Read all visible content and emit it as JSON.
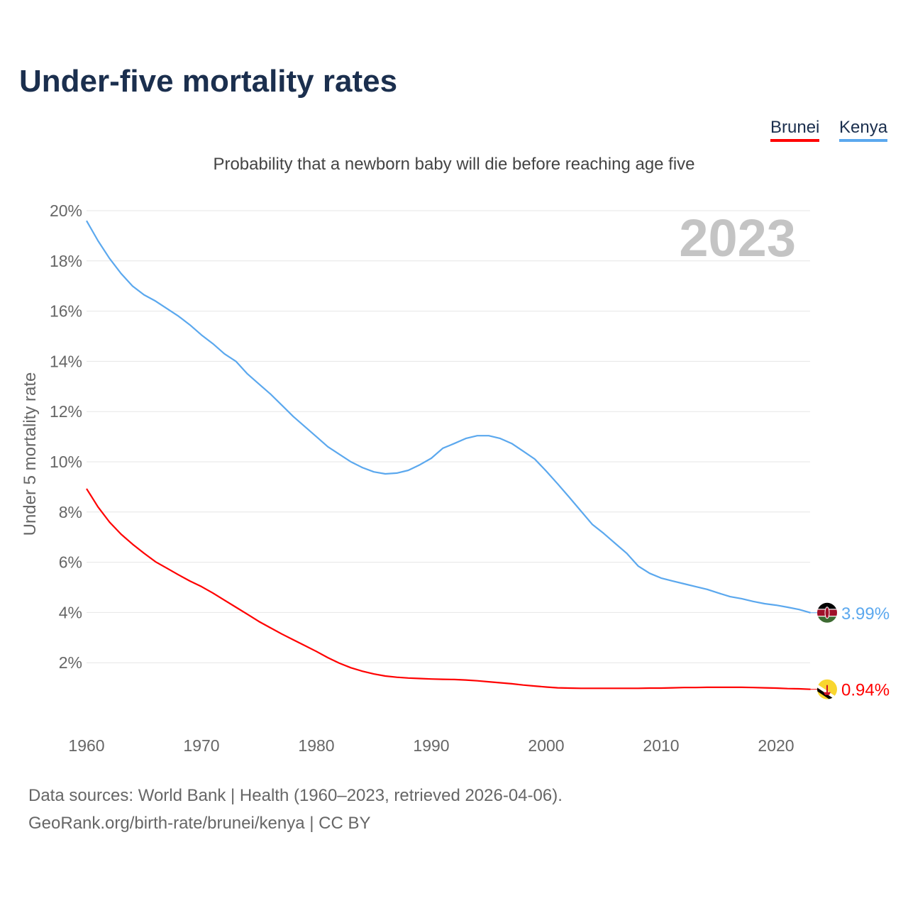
{
  "chart_data": {
    "type": "line",
    "title": "Under-five mortality rates",
    "subtitle": "Probability that a newborn baby will die before reaching age five",
    "ylabel": "Under 5 mortality rate",
    "xlabel": "",
    "year_label": "2023",
    "xlim": [
      1960,
      2023
    ],
    "ylim": [
      0,
      20
    ],
    "x_ticks": [
      1960,
      1970,
      1980,
      1990,
      2000,
      2010,
      2020
    ],
    "y_ticks": [
      "2%",
      "4%",
      "6%",
      "8%",
      "10%",
      "12%",
      "14%",
      "16%",
      "18%",
      "20%"
    ],
    "y_tick_values": [
      2,
      4,
      6,
      8,
      10,
      12,
      14,
      16,
      18,
      20
    ],
    "grid": true,
    "legend_placement": "top-right",
    "series": [
      {
        "name": "Brunei",
        "color": "#ff0000",
        "end_label": "0.94%",
        "flag": "brunei-flag",
        "x_start": 1960,
        "values": [
          8.93,
          8.2,
          7.6,
          7.12,
          6.72,
          6.36,
          6.02,
          5.76,
          5.5,
          5.25,
          5.03,
          4.77,
          4.49,
          4.21,
          3.93,
          3.64,
          3.39,
          3.14,
          2.91,
          2.68,
          2.45,
          2.2,
          1.98,
          1.8,
          1.66,
          1.55,
          1.47,
          1.42,
          1.39,
          1.37,
          1.35,
          1.34,
          1.33,
          1.31,
          1.28,
          1.24,
          1.2,
          1.16,
          1.11,
          1.07,
          1.03,
          1.0,
          0.99,
          0.98,
          0.98,
          0.98,
          0.98,
          0.98,
          0.98,
          0.99,
          0.99,
          1.0,
          1.01,
          1.01,
          1.02,
          1.02,
          1.02,
          1.02,
          1.01,
          1.0,
          0.99,
          0.97,
          0.96,
          0.94
        ]
      },
      {
        "name": "Kenya",
        "color": "#5ba8ee",
        "end_label": "3.99%",
        "flag": "kenya-flag",
        "x_start": 1960,
        "values": [
          19.6,
          18.8,
          18.1,
          17.5,
          17.0,
          16.65,
          16.4,
          16.1,
          15.8,
          15.45,
          15.05,
          14.7,
          14.3,
          14.0,
          13.5,
          13.1,
          12.7,
          12.25,
          11.8,
          11.4,
          11.0,
          10.6,
          10.3,
          10.0,
          9.77,
          9.6,
          9.52,
          9.55,
          9.66,
          9.88,
          10.14,
          10.54,
          10.73,
          10.93,
          11.04,
          11.04,
          10.93,
          10.73,
          10.42,
          10.11,
          9.63,
          9.12,
          8.59,
          8.05,
          7.51,
          7.15,
          6.75,
          6.36,
          5.85,
          5.56,
          5.37,
          5.25,
          5.14,
          5.03,
          4.92,
          4.77,
          4.63,
          4.55,
          4.44,
          4.35,
          4.29,
          4.21,
          4.12,
          3.99
        ]
      }
    ]
  },
  "footer": {
    "source": "Data sources: World Bank | Health (1960–2023, retrieved 2026-04-06).",
    "url": "GeoRank.org/birth-rate/brunei/kenya | CC BY"
  }
}
